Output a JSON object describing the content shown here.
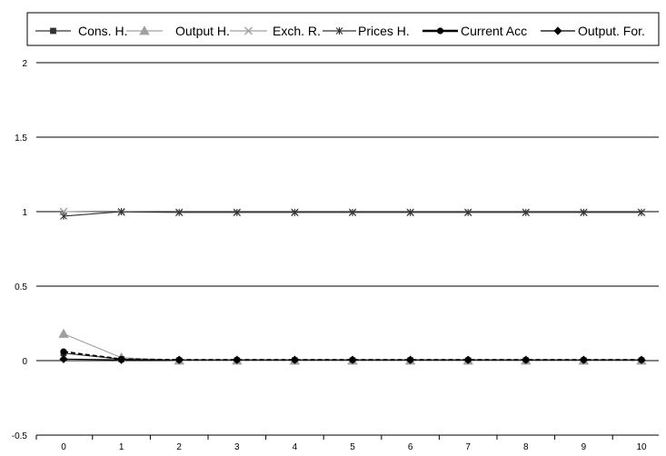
{
  "chart_data": {
    "type": "line",
    "x": [
      0,
      1,
      2,
      3,
      4,
      5,
      6,
      7,
      8,
      9,
      10
    ],
    "x_tick_labels": [
      "0",
      "1",
      "2",
      "3",
      "4",
      "5",
      "6",
      "7",
      "8",
      "9",
      "10"
    ],
    "y_ticks": [
      2,
      1.5,
      1,
      0.5,
      0,
      -0.5
    ],
    "y_tick_labels": [
      "2",
      "1.5",
      "1",
      "0.5",
      "0",
      "-0.5"
    ],
    "ylim": [
      -0.5,
      2
    ],
    "grid": true,
    "legend_position": "top",
    "series": [
      {
        "name": "Cons. H.",
        "color": "#333333",
        "marker": "square",
        "line_style": "solid",
        "values": [
          0.05,
          0.01,
          0.0,
          0.0,
          0.0,
          0.0,
          0.0,
          0.0,
          0.0,
          0.0,
          0.0
        ]
      },
      {
        "name": "Output H.",
        "color": "#a0a0a0",
        "marker": "triangle",
        "line_style": "solid",
        "values": [
          0.18,
          0.02,
          0.0,
          0.0,
          0.0,
          0.0,
          0.0,
          0.0,
          0.0,
          0.0,
          0.0
        ]
      },
      {
        "name": "Exch. R.",
        "color": "#a0a0a0",
        "marker": "x",
        "line_style": "solid",
        "values": [
          1.0,
          0.995,
          0.995,
          0.995,
          0.995,
          0.995,
          0.995,
          0.995,
          0.995,
          0.995,
          0.995
        ]
      },
      {
        "name": "Prices H.",
        "color": "#333333",
        "marker": "star",
        "line_style": "solid",
        "values": [
          0.97,
          1.0,
          0.995,
          0.995,
          0.995,
          0.995,
          0.995,
          0.995,
          0.995,
          0.995,
          0.995
        ]
      },
      {
        "name": "Current Acc",
        "color": "#000000",
        "marker": "circle",
        "line_style": "dashed",
        "values": [
          0.06,
          0.01,
          0.005,
          0.005,
          0.005,
          0.005,
          0.005,
          0.005,
          0.005,
          0.005,
          0.005
        ]
      },
      {
        "name": "Output. For.",
        "color": "#000000",
        "marker": "diamond",
        "line_style": "solid",
        "values": [
          0.01,
          0.005,
          0.005,
          0.005,
          0.005,
          0.005,
          0.005,
          0.005,
          0.005,
          0.005,
          0.005
        ]
      }
    ]
  }
}
